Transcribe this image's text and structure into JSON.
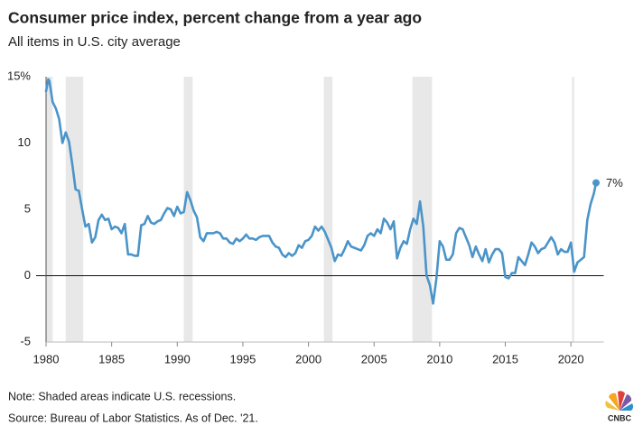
{
  "chart_data": {
    "type": "line",
    "title": "Consumer price index, percent change from a year ago",
    "subtitle": "All items in U.S. city average",
    "note": "Note: Shaded areas indicate U.S. recessions.",
    "source": "Source: Bureau of Labor Statistics. As of Dec. '21.",
    "logo": "CNBC",
    "end_label": "7%",
    "x": [
      1980,
      1980.167,
      1980.25,
      1980.5,
      1980.75,
      1981,
      1981.25,
      1981.5,
      1981.75,
      1982,
      1982.25,
      1982.5,
      1982.75,
      1983,
      1983.25,
      1983.5,
      1983.75,
      1984,
      1984.25,
      1984.5,
      1984.75,
      1985,
      1985.25,
      1985.5,
      1985.75,
      1986,
      1986.25,
      1986.5,
      1986.75,
      1987,
      1987.25,
      1987.5,
      1987.75,
      1988,
      1988.25,
      1988.5,
      1988.75,
      1989,
      1989.25,
      1989.5,
      1989.75,
      1990,
      1990.25,
      1990.5,
      1990.75,
      1991,
      1991.25,
      1991.5,
      1991.75,
      1992,
      1992.25,
      1992.5,
      1992.75,
      1993,
      1993.25,
      1993.5,
      1993.75,
      1994,
      1994.25,
      1994.5,
      1994.75,
      1995,
      1995.25,
      1995.5,
      1995.75,
      1996,
      1996.25,
      1996.5,
      1996.75,
      1997,
      1997.25,
      1997.5,
      1997.75,
      1998,
      1998.25,
      1998.5,
      1998.75,
      1999,
      1999.25,
      1999.5,
      1999.75,
      2000,
      2000.25,
      2000.5,
      2000.75,
      2001,
      2001.25,
      2001.5,
      2001.75,
      2002,
      2002.25,
      2002.5,
      2002.75,
      2003,
      2003.25,
      2003.5,
      2003.75,
      2004,
      2004.25,
      2004.5,
      2004.75,
      2005,
      2005.25,
      2005.5,
      2005.75,
      2006,
      2006.25,
      2006.5,
      2006.75,
      2007,
      2007.25,
      2007.5,
      2007.75,
      2008,
      2008.25,
      2008.5,
      2008.75,
      2009,
      2009.25,
      2009.5,
      2009.75,
      2010,
      2010.25,
      2010.5,
      2010.75,
      2011,
      2011.25,
      2011.5,
      2011.75,
      2012,
      2012.25,
      2012.5,
      2012.75,
      2013,
      2013.25,
      2013.5,
      2013.75,
      2014,
      2014.25,
      2014.5,
      2014.75,
      2015,
      2015.25,
      2015.5,
      2015.75,
      2016,
      2016.25,
      2016.5,
      2016.75,
      2017,
      2017.25,
      2017.5,
      2017.75,
      2018,
      2018.25,
      2018.5,
      2018.75,
      2019,
      2019.25,
      2019.5,
      2019.75,
      2020,
      2020.25,
      2020.5,
      2020.75,
      2021,
      2021.25,
      2021.5,
      2021.75,
      2021.917
    ],
    "series": [
      {
        "name": "CPI",
        "color": "#4a94c9",
        "values": [
          13.9,
          14.8,
          14.7,
          13.1,
          12.6,
          11.8,
          10.0,
          10.8,
          10.1,
          8.4,
          6.5,
          6.4,
          5.0,
          3.7,
          3.9,
          2.5,
          2.9,
          4.2,
          4.6,
          4.2,
          4.3,
          3.5,
          3.7,
          3.6,
          3.2,
          3.9,
          1.6,
          1.6,
          1.5,
          1.5,
          3.8,
          3.9,
          4.5,
          4.0,
          3.9,
          4.1,
          4.2,
          4.7,
          5.1,
          5.0,
          4.5,
          5.2,
          4.7,
          4.8,
          6.3,
          5.7,
          4.9,
          4.4,
          2.9,
          2.6,
          3.2,
          3.2,
          3.2,
          3.3,
          3.2,
          2.8,
          2.8,
          2.5,
          2.4,
          2.8,
          2.6,
          2.8,
          3.1,
          2.8,
          2.8,
          2.7,
          2.9,
          3.0,
          3.0,
          3.0,
          2.5,
          2.2,
          2.1,
          1.6,
          1.4,
          1.7,
          1.5,
          1.7,
          2.3,
          2.1,
          2.6,
          2.7,
          3.0,
          3.7,
          3.4,
          3.7,
          3.3,
          2.7,
          2.1,
          1.1,
          1.6,
          1.5,
          2.0,
          2.6,
          2.2,
          2.1,
          2.0,
          1.9,
          2.3,
          3.0,
          3.2,
          3.0,
          3.5,
          3.2,
          4.3,
          4.0,
          3.5,
          4.1,
          1.3,
          2.1,
          2.6,
          2.4,
          3.5,
          4.3,
          3.9,
          5.6,
          3.7,
          0.0,
          -0.7,
          -2.1,
          -0.2,
          2.6,
          2.2,
          1.2,
          1.2,
          1.6,
          3.2,
          3.6,
          3.5,
          2.9,
          2.3,
          1.4,
          2.2,
          1.6,
          1.1,
          2.0,
          1.0,
          1.6,
          2.0,
          2.0,
          1.7,
          -0.1,
          -0.2,
          0.2,
          0.2,
          1.4,
          1.1,
          0.8,
          1.6,
          2.5,
          2.2,
          1.7,
          2.0,
          2.1,
          2.5,
          2.9,
          2.5,
          1.6,
          2.0,
          1.8,
          1.8,
          2.5,
          0.3,
          1.0,
          1.2,
          1.4,
          4.2,
          5.4,
          6.2,
          7.0
        ]
      }
    ],
    "recessions": [
      [
        1980.0,
        1980.5
      ],
      [
        1981.5,
        1982.83
      ],
      [
        1990.5,
        1991.17
      ],
      [
        2001.17,
        2001.83
      ],
      [
        2007.92,
        2009.42
      ],
      [
        2020.08,
        2020.25
      ]
    ],
    "recession_color": "#e8e8e8",
    "xlim": [
      1980,
      2022.5
    ],
    "xticks": [
      1980,
      1985,
      1990,
      1995,
      2000,
      2005,
      2010,
      2015,
      2020
    ],
    "ylim": [
      -5,
      15
    ],
    "yticks": [
      -5,
      0,
      5,
      10,
      {
        "value": 15,
        "label": "15%"
      }
    ],
    "grid": false,
    "zero_line": true
  }
}
